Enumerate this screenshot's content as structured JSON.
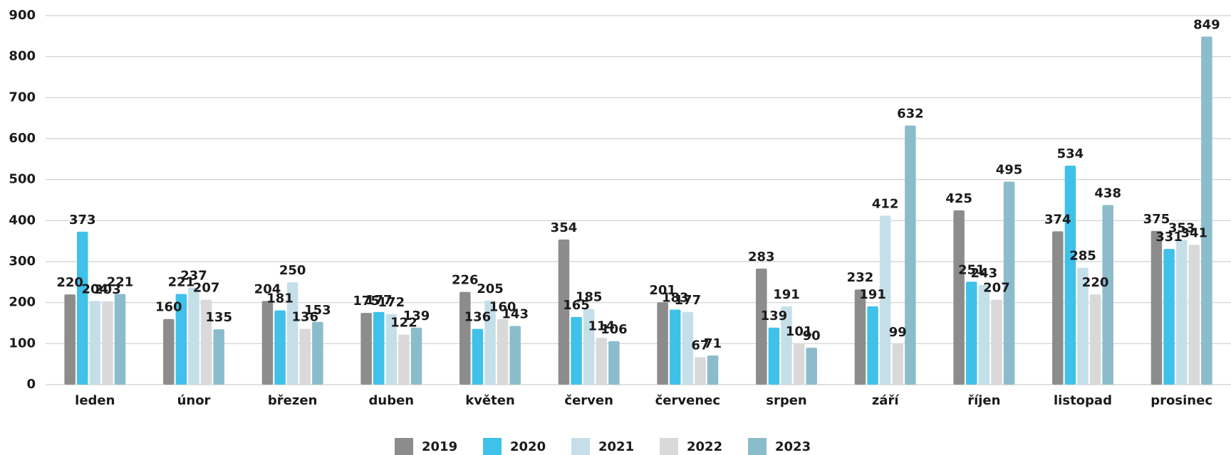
{
  "chart_data": {
    "type": "bar",
    "categories": [
      "leden",
      "únor",
      "březen",
      "duben",
      "květen",
      "červen",
      "červenec",
      "srpen",
      "září",
      "říjen",
      "listopad",
      "prosinec"
    ],
    "series": [
      {
        "name": "2019",
        "color": "#8c8c8c",
        "values": [
          220,
          160,
          204,
          175,
          226,
          354,
          201,
          283,
          232,
          425,
          374,
          375
        ]
      },
      {
        "name": "2020",
        "color": "#3fc1ea",
        "values": [
          373,
          221,
          181,
          177,
          136,
          165,
          183,
          139,
          191,
          251,
          534,
          331
        ]
      },
      {
        "name": "2021",
        "color": "#c5dfe9",
        "values": [
          204,
          237,
          250,
          172,
          205,
          185,
          177,
          191,
          412,
          243,
          285,
          353
        ]
      },
      {
        "name": "2022",
        "color": "#d9d9d9",
        "values": [
          203,
          207,
          136,
          122,
          160,
          114,
          67,
          101,
          99,
          207,
          220,
          341
        ]
      },
      {
        "name": "2023",
        "color": "#8bbccc",
        "values": [
          221,
          135,
          153,
          139,
          143,
          106,
          71,
          90,
          632,
          495,
          438,
          849
        ]
      }
    ],
    "ylim": [
      0,
      900
    ],
    "yticks": [
      0,
      100,
      200,
      300,
      400,
      500,
      600,
      700,
      800,
      900
    ],
    "grid": true,
    "legend": "bottom"
  }
}
